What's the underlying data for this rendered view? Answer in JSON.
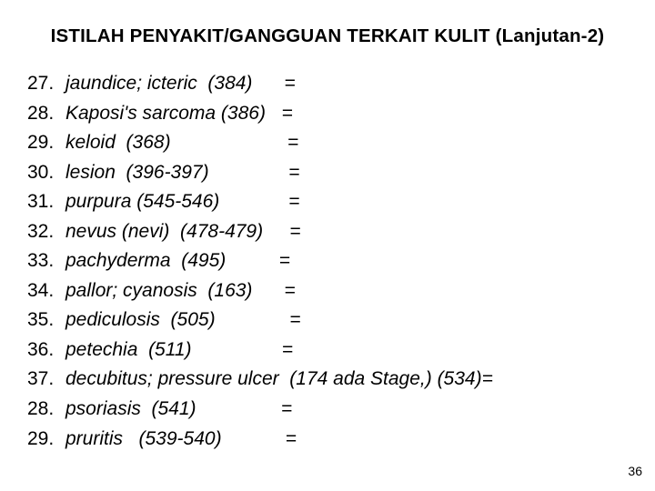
{
  "title": "ISTILAH  PENYAKIT/GANGGUAN  TERKAIT KULIT (Lanjutan-2)",
  "page_number": "36",
  "items": [
    {
      "num": "27.",
      "term": "jaundice; icteric  (384)      ="
    },
    {
      "num": "28.",
      "term": "Kaposi's sarcoma (386)   ="
    },
    {
      "num": "29.",
      "term": "keloid  (368)                      ="
    },
    {
      "num": "30.",
      "term": "lesion  (396-397)               ="
    },
    {
      "num": "31.",
      "term": "purpura (545-546)             ="
    },
    {
      "num": "32.",
      "term": "nevus (nevi)  (478-479)     ="
    },
    {
      "num": "33.",
      "term": "pachyderma  (495)          ="
    },
    {
      "num": "34.",
      "term": "pallor; cyanosis  (163)      ="
    },
    {
      "num": "35.",
      "term": "pediculosis  (505)              ="
    },
    {
      "num": "36.",
      "term": "petechia  (511)                 ="
    },
    {
      "num": "37.",
      "term": "decubitus; pressure ulcer  (174 ada Stage,) (534)="
    },
    {
      "num": "28.",
      "term": "psoriasis  (541)                ="
    },
    {
      "num": "29.",
      "term": "pruritis   (539-540)            ="
    }
  ]
}
